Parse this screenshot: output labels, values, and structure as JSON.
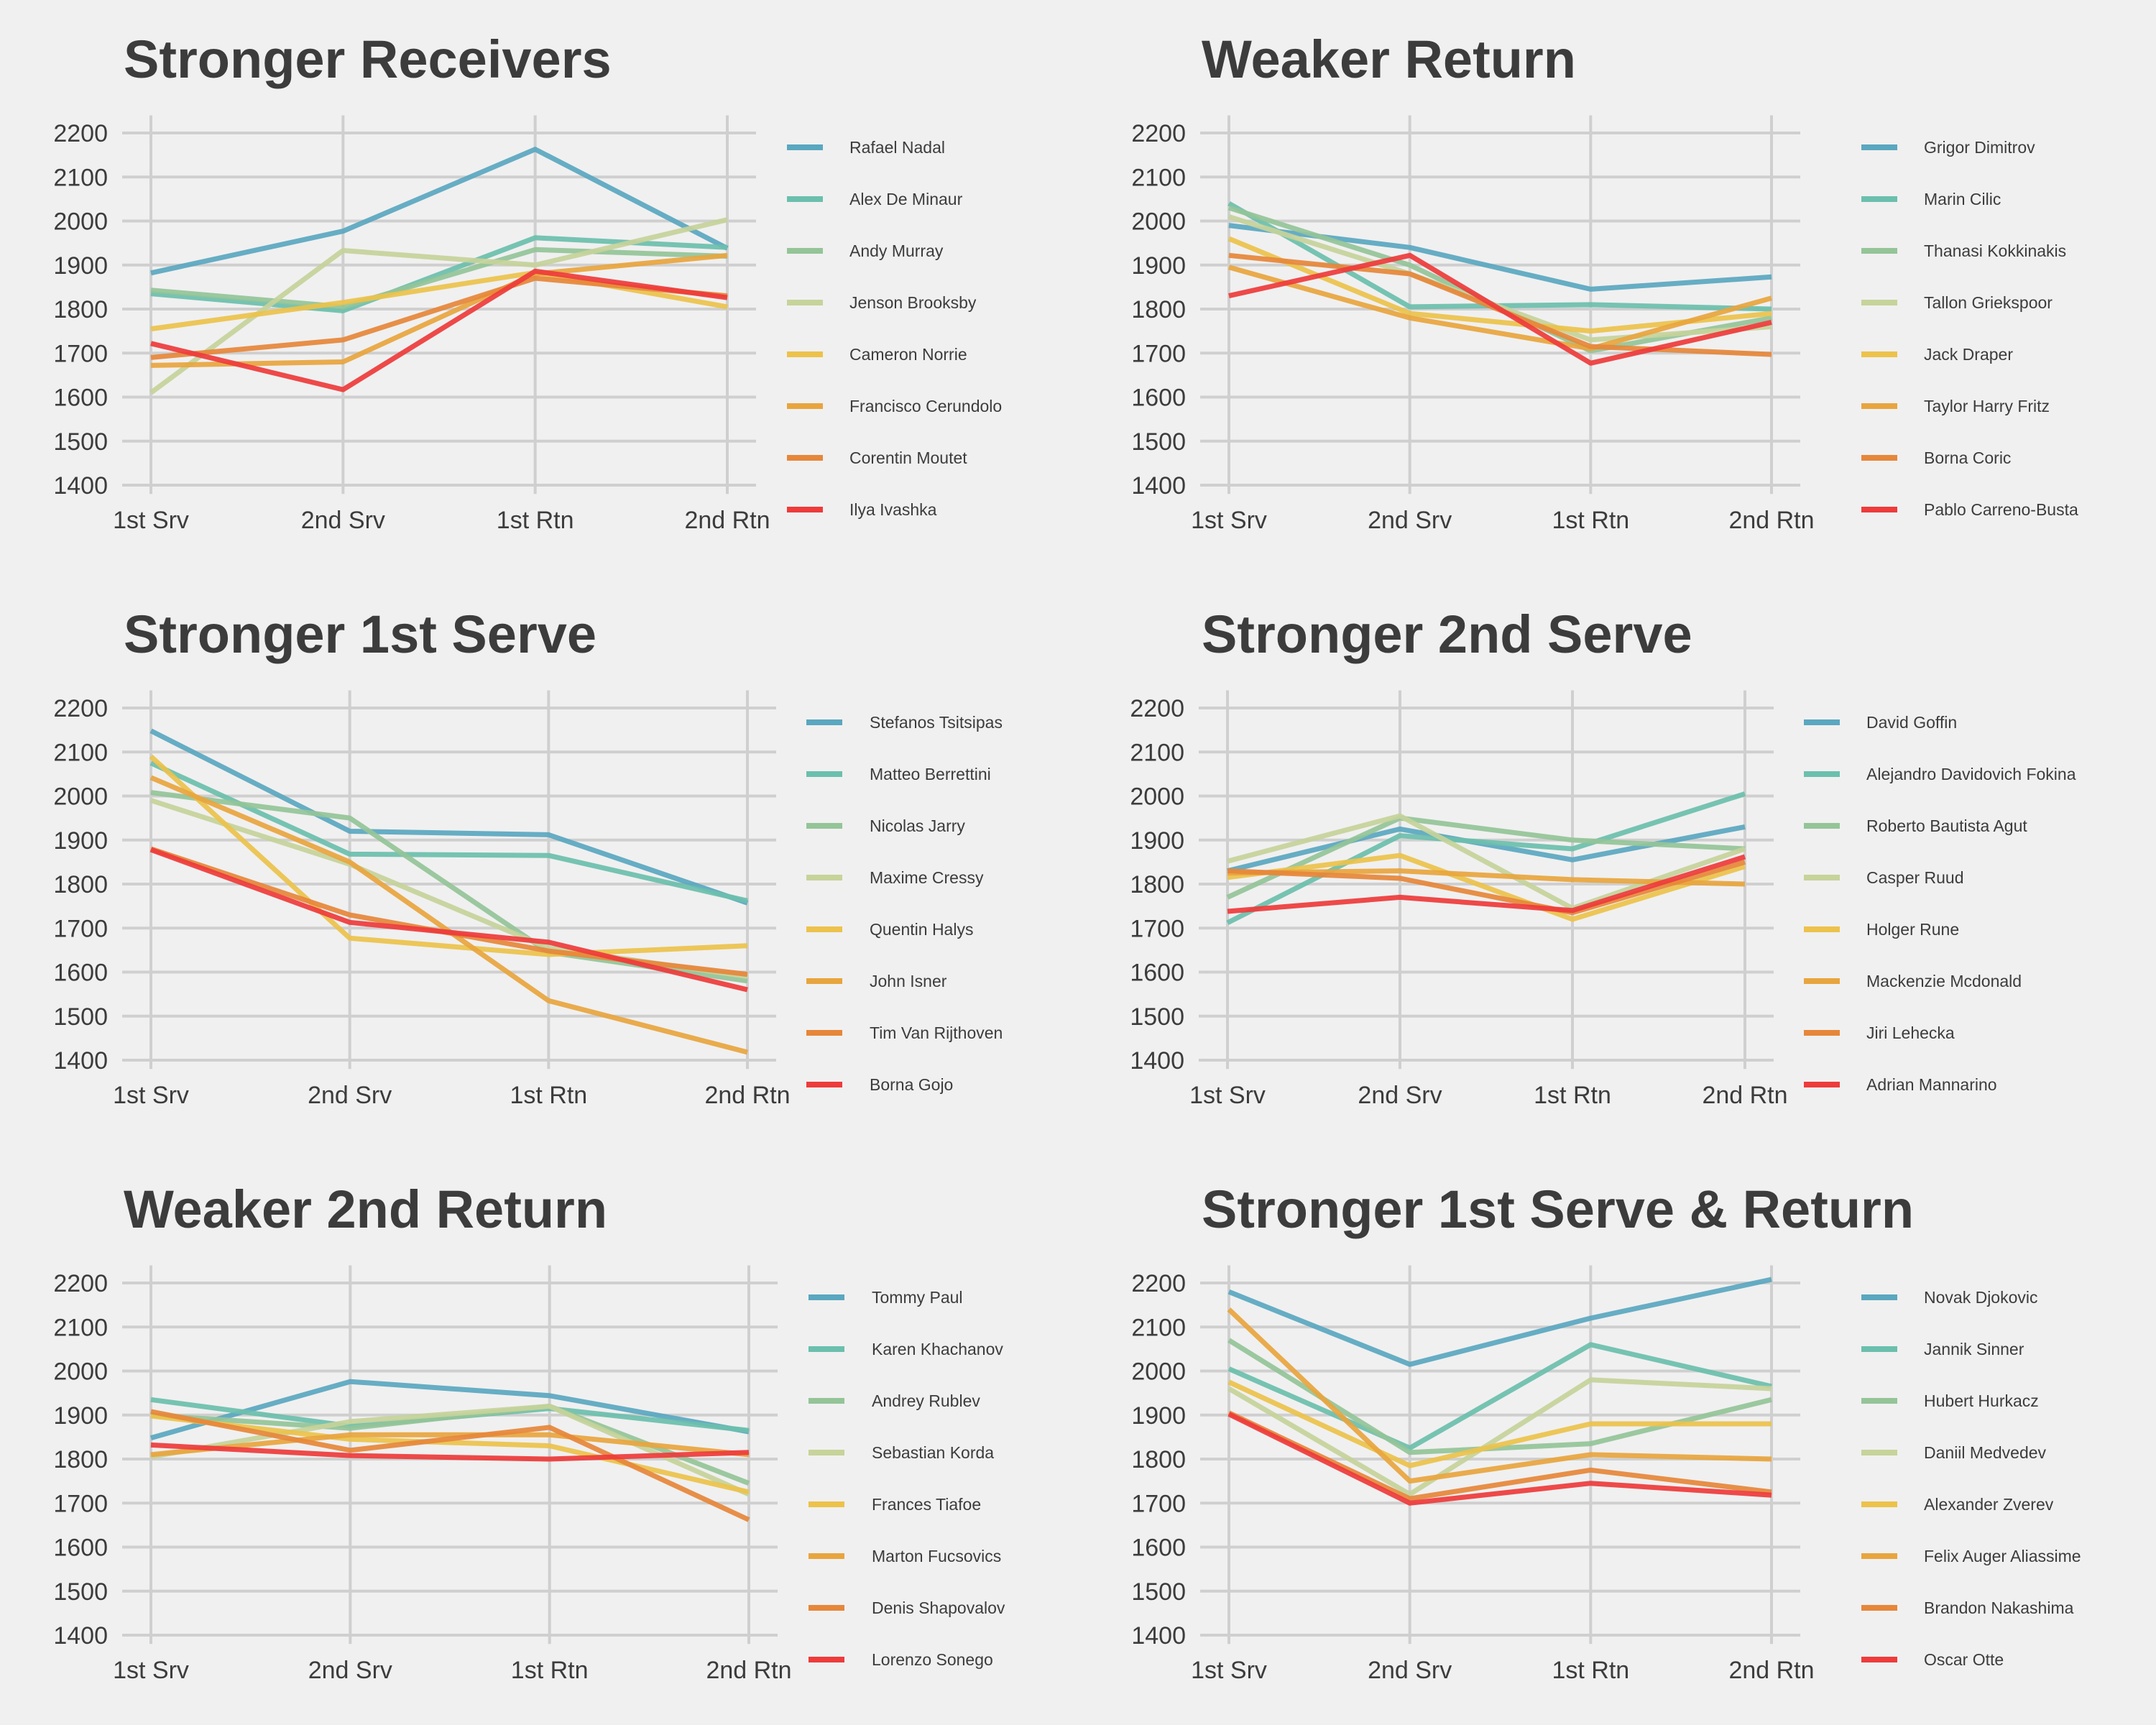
{
  "chart_data": [
    {
      "type": "line",
      "title": "Stronger Receivers",
      "categories": [
        "1st Srv",
        "2nd Srv",
        "1st Rtn",
        "2nd Rtn"
      ],
      "yticks": [
        1400,
        1500,
        1600,
        1700,
        1800,
        1900,
        2000,
        2100,
        2200
      ],
      "ylim": [
        1380,
        2240
      ],
      "grid": true,
      "legend": "right",
      "series": [
        {
          "name": "Rafael Nadal",
          "values": [
            1882,
            1977,
            2163,
            1938
          ]
        },
        {
          "name": "Alex De Minaur",
          "values": [
            1835,
            1796,
            1962,
            1940
          ]
        },
        {
          "name": "Andy Murray",
          "values": [
            1843,
            1805,
            1935,
            1920
          ]
        },
        {
          "name": "Jenson Brooksby",
          "values": [
            1610,
            1933,
            1900,
            2003
          ]
        },
        {
          "name": "Cameron Norrie",
          "values": [
            1755,
            1815,
            1883,
            1805
          ]
        },
        {
          "name": "Francisco Cerundolo",
          "values": [
            1672,
            1680,
            1880,
            1922
          ]
        },
        {
          "name": "Corentin Moutet",
          "values": [
            1690,
            1730,
            1870,
            1830
          ]
        },
        {
          "name": "Ilya Ivashka",
          "values": [
            1722,
            1617,
            1886,
            1826
          ]
        }
      ]
    },
    {
      "type": "line",
      "title": "Weaker Return",
      "categories": [
        "1st Srv",
        "2nd Srv",
        "1st Rtn",
        "2nd Rtn"
      ],
      "yticks": [
        1400,
        1500,
        1600,
        1700,
        1800,
        1900,
        2000,
        2100,
        2200
      ],
      "ylim": [
        1380,
        2240
      ],
      "grid": true,
      "legend": "right",
      "series": [
        {
          "name": "Grigor Dimitrov",
          "values": [
            1990,
            1940,
            1845,
            1873
          ]
        },
        {
          "name": "Marin Cilic",
          "values": [
            2040,
            1805,
            1810,
            1800
          ]
        },
        {
          "name": "Thanasi Kokkinakis",
          "values": [
            2030,
            1900,
            1705,
            1780
          ]
        },
        {
          "name": "Tallon Griekspoor",
          "values": [
            2010,
            1880,
            1730,
            1760
          ]
        },
        {
          "name": "Jack Draper",
          "values": [
            1960,
            1790,
            1750,
            1790
          ]
        },
        {
          "name": "Taylor Harry Fritz",
          "values": [
            1895,
            1780,
            1710,
            1825
          ]
        },
        {
          "name": "Borna Coric",
          "values": [
            1922,
            1880,
            1715,
            1697
          ]
        },
        {
          "name": "Pablo Carreno-Busta",
          "values": [
            1830,
            1922,
            1677,
            1770
          ]
        }
      ]
    },
    {
      "type": "line",
      "title": "Stronger 1st Serve",
      "categories": [
        "1st Srv",
        "2nd Srv",
        "1st Rtn",
        "2nd Rtn"
      ],
      "yticks": [
        1400,
        1500,
        1600,
        1700,
        1800,
        1900,
        2000,
        2100,
        2200
      ],
      "ylim": [
        1380,
        2240
      ],
      "grid": true,
      "legend": "right",
      "series": [
        {
          "name": "Stefanos Tsitsipas",
          "values": [
            2148,
            1920,
            1912,
            1757
          ]
        },
        {
          "name": "Matteo Berrettini",
          "values": [
            2075,
            1868,
            1865,
            1762
          ]
        },
        {
          "name": "Nicolas Jarry",
          "values": [
            2008,
            1950,
            1645,
            1580
          ]
        },
        {
          "name": "Maxime Cressy",
          "values": [
            1990,
            1845,
            1655,
            1590
          ]
        },
        {
          "name": "Quentin Halys",
          "values": [
            2090,
            1677,
            1640,
            1660
          ]
        },
        {
          "name": "John Isner",
          "values": [
            2042,
            1850,
            1535,
            1418
          ]
        },
        {
          "name": "Tim Van Rijthoven",
          "values": [
            1880,
            1730,
            1648,
            1595
          ]
        },
        {
          "name": "Borna Gojo",
          "values": [
            1878,
            1713,
            1668,
            1560
          ]
        }
      ]
    },
    {
      "type": "line",
      "title": "Stronger 2nd Serve",
      "categories": [
        "1st Srv",
        "2nd Srv",
        "1st Rtn",
        "2nd Rtn"
      ],
      "yticks": [
        1400,
        1500,
        1600,
        1700,
        1800,
        1900,
        2000,
        2100,
        2200
      ],
      "ylim": [
        1380,
        2240
      ],
      "grid": true,
      "legend": "right",
      "series": [
        {
          "name": "David Goffin",
          "values": [
            1830,
            1925,
            1855,
            1930
          ]
        },
        {
          "name": "Alejandro Davidovich Fokina",
          "values": [
            1712,
            1910,
            1880,
            2005
          ]
        },
        {
          "name": "Roberto Bautista Agut",
          "values": [
            1770,
            1950,
            1900,
            1880
          ]
        },
        {
          "name": "Casper Ruud",
          "values": [
            1852,
            1955,
            1745,
            1880
          ]
        },
        {
          "name": "Holger Rune",
          "values": [
            1815,
            1865,
            1720,
            1840
          ]
        },
        {
          "name": "Mackenzie Mcdonald",
          "values": [
            1825,
            1830,
            1810,
            1800
          ]
        },
        {
          "name": "Jiri Lehecka",
          "values": [
            1830,
            1813,
            1735,
            1850
          ]
        },
        {
          "name": "Adrian Mannarino",
          "values": [
            1738,
            1770,
            1740,
            1862
          ]
        }
      ]
    },
    {
      "type": "line",
      "title": "Weaker 2nd Return",
      "categories": [
        "1st Srv",
        "2nd Srv",
        "1st Rtn",
        "2nd Rtn"
      ],
      "yticks": [
        1400,
        1500,
        1600,
        1700,
        1800,
        1900,
        2000,
        2100,
        2200
      ],
      "ylim": [
        1380,
        2240
      ],
      "grid": true,
      "legend": "right",
      "series": [
        {
          "name": "Tommy Paul",
          "values": [
            1848,
            1976,
            1944,
            1862
          ]
        },
        {
          "name": "Karen Khachanov",
          "values": [
            1935,
            1875,
            1915,
            1865
          ]
        },
        {
          "name": "Andrey Rublev",
          "values": [
            1900,
            1870,
            1920,
            1745
          ]
        },
        {
          "name": "Sebastian Korda",
          "values": [
            1805,
            1885,
            1920,
            1720
          ]
        },
        {
          "name": "Frances Tiafoe",
          "values": [
            1898,
            1845,
            1830,
            1725
          ]
        },
        {
          "name": "Marton Fucsovics",
          "values": [
            1810,
            1855,
            1855,
            1810
          ]
        },
        {
          "name": "Denis Shapovalov",
          "values": [
            1908,
            1820,
            1872,
            1662
          ]
        },
        {
          "name": "Lorenzo Sonego",
          "values": [
            1832,
            1808,
            1800,
            1815
          ]
        }
      ]
    },
    {
      "type": "line",
      "title": "Stronger 1st Serve & Return",
      "categories": [
        "1st Srv",
        "2nd Srv",
        "1st Rtn",
        "2nd Rtn"
      ],
      "yticks": [
        1400,
        1500,
        1600,
        1700,
        1800,
        1900,
        2000,
        2100,
        2200
      ],
      "ylim": [
        1380,
        2240
      ],
      "grid": true,
      "legend": "right",
      "series": [
        {
          "name": "Novak Djokovic",
          "values": [
            2180,
            2015,
            2120,
            2208
          ]
        },
        {
          "name": "Jannik Sinner",
          "values": [
            2005,
            1825,
            2060,
            1965
          ]
        },
        {
          "name": "Hubert Hurkacz",
          "values": [
            2070,
            1815,
            1835,
            1935
          ]
        },
        {
          "name": "Daniil Medvedev",
          "values": [
            1960,
            1720,
            1980,
            1960
          ]
        },
        {
          "name": "Alexander Zverev",
          "values": [
            1975,
            1785,
            1880,
            1880
          ]
        },
        {
          "name": "Felix Auger Aliassime",
          "values": [
            2140,
            1750,
            1810,
            1800
          ]
        },
        {
          "name": "Brandon Nakashima",
          "values": [
            1905,
            1710,
            1775,
            1725
          ]
        },
        {
          "name": "Oscar Otte",
          "values": [
            1902,
            1700,
            1745,
            1718
          ]
        }
      ]
    }
  ],
  "palette": [
    "#5aa7c0",
    "#6bbfad",
    "#94c498",
    "#c6d39a",
    "#ecc24b",
    "#e8a53e",
    "#e6873a",
    "#ee3b3b"
  ]
}
